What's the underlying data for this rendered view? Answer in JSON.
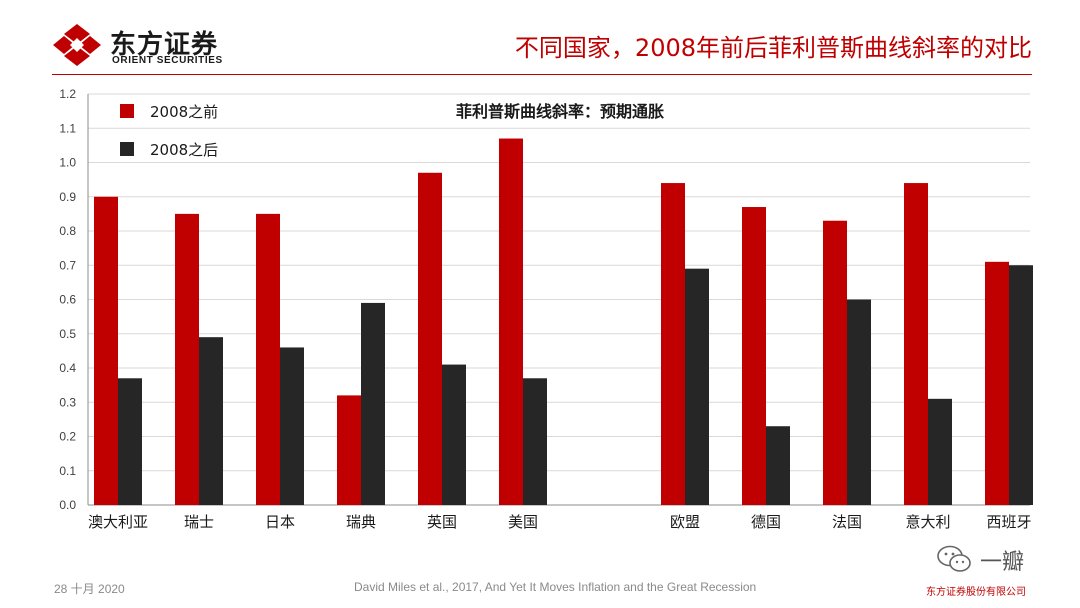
{
  "header": {
    "logo_cn": "东方证券",
    "logo_en": "ORIENT SECURITIES",
    "title": "不同国家，2008年前后菲利普斯曲线斜率的对比"
  },
  "colors": {
    "accent": "#c00000",
    "series_before": "#c00000",
    "series_after": "#262626",
    "grid": "#d9d9d9"
  },
  "chart_data": {
    "type": "bar",
    "title": "菲利普斯曲线斜率：预期通胀",
    "xlabel": "",
    "ylabel": "",
    "ylim": [
      0,
      1.2
    ],
    "yticks": [
      "0.0",
      "0.1",
      "0.2",
      "0.3",
      "0.4",
      "0.5",
      "0.6",
      "0.7",
      "0.8",
      "0.9",
      "1.0",
      "1.1",
      "1.2"
    ],
    "grid": true,
    "legend_position": "top-left",
    "categories": [
      "澳大利亚",
      "瑞士",
      "日本",
      "瑞典",
      "英国",
      "美国",
      "欧盟",
      "德国",
      "法国",
      "意大利",
      "西班牙"
    ],
    "series": [
      {
        "name": "2008之前",
        "values": [
          0.9,
          0.85,
          0.85,
          0.32,
          0.97,
          1.07,
          0.94,
          0.87,
          0.83,
          0.94,
          0.71
        ]
      },
      {
        "name": "2008之后",
        "values": [
          0.37,
          0.49,
          0.46,
          0.59,
          0.41,
          0.37,
          0.69,
          0.23,
          0.6,
          0.31,
          0.7
        ]
      }
    ]
  },
  "footer": {
    "date": "28 十月 2020",
    "source": "David Miles et al., 2017, And Yet It Moves Inflation and the Great Recession",
    "company": "东方证券股份有限公司",
    "watermark": "一瓣"
  }
}
